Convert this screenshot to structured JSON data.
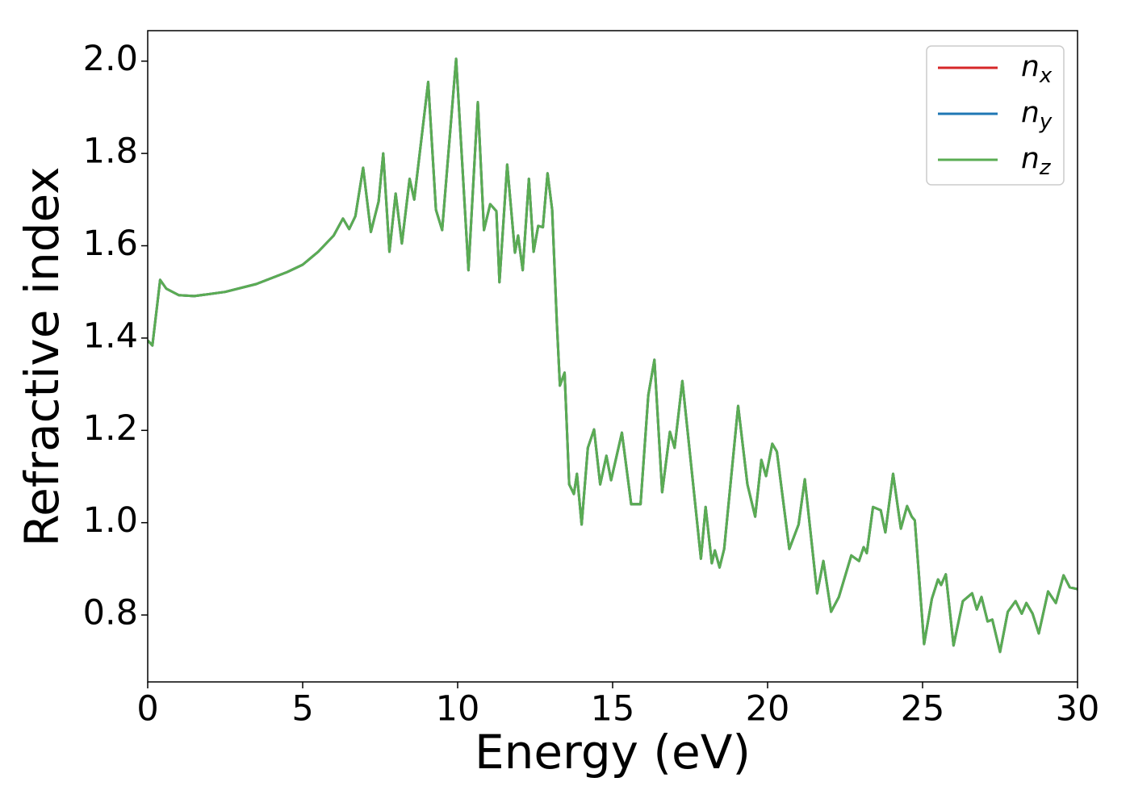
{
  "chart_data": {
    "type": "line",
    "xlabel": "Energy (eV)",
    "ylabel": "Refractive index",
    "xlim": [
      0,
      30
    ],
    "ylim": [
      0.655,
      2.066
    ],
    "xticks": [
      0,
      5,
      10,
      15,
      20,
      25,
      30
    ],
    "yticks": [
      0.8,
      {
        "value": 1.0,
        "label": "1.0"
      },
      1.2,
      1.4,
      1.6,
      1.8,
      {
        "value": 2.0,
        "label": "2.0"
      }
    ],
    "legend": "upper right",
    "x": [
      0,
      0.15,
      0.3,
      0.4,
      0.6,
      1.0,
      1.5,
      2.5,
      3.5,
      4.5,
      5.0,
      5.5,
      6.0,
      6.3,
      6.5,
      6.7,
      6.95,
      7.2,
      7.45,
      7.6,
      7.8,
      8.0,
      8.2,
      8.45,
      8.6,
      9.05,
      9.3,
      9.5,
      9.95,
      10.35,
      10.65,
      10.85,
      11.05,
      11.25,
      11.35,
      11.6,
      11.85,
      11.95,
      12.1,
      12.3,
      12.45,
      12.6,
      12.75,
      12.9,
      13.05,
      13.2,
      13.3,
      13.45,
      13.6,
      13.75,
      13.85,
      14.0,
      14.2,
      14.4,
      14.6,
      14.8,
      14.95,
      15.3,
      15.6,
      15.9,
      16.15,
      16.35,
      16.6,
      16.85,
      17.0,
      17.25,
      17.85,
      18.0,
      18.2,
      18.3,
      18.45,
      18.6,
      19.05,
      19.35,
      19.6,
      19.8,
      19.95,
      20.15,
      20.3,
      20.7,
      21.0,
      21.2,
      21.6,
      21.8,
      22.05,
      22.3,
      22.7,
      22.95,
      23.1,
      23.2,
      23.4,
      23.65,
      23.8,
      24.05,
      24.3,
      24.5,
      24.65,
      24.75,
      25.05,
      25.3,
      25.5,
      25.6,
      25.75,
      26.0,
      26.3,
      26.6,
      26.75,
      26.9,
      27.1,
      27.25,
      27.5,
      27.75,
      28.0,
      28.2,
      28.35,
      28.55,
      28.75,
      29.05,
      29.3,
      29.55,
      29.75,
      30.0
    ],
    "series": [
      {
        "name": "nx",
        "color": "#d62728",
        "values": [
          1.395,
          1.384,
          1.468,
          1.526,
          1.507,
          1.493,
          1.491,
          1.5,
          1.517,
          1.543,
          1.559,
          1.587,
          1.622,
          1.659,
          1.636,
          1.664,
          1.769,
          1.63,
          1.696,
          1.8,
          1.587,
          1.713,
          1.605,
          1.745,
          1.7,
          1.955,
          1.678,
          1.634,
          2.005,
          1.547,
          1.911,
          1.634,
          1.69,
          1.675,
          1.521,
          1.776,
          1.585,
          1.622,
          1.547,
          1.745,
          1.587,
          1.643,
          1.64,
          1.757,
          1.678,
          1.433,
          1.297,
          1.325,
          1.083,
          1.062,
          1.106,
          0.996,
          1.162,
          1.202,
          1.083,
          1.145,
          1.092,
          1.195,
          1.04,
          1.04,
          1.276,
          1.353,
          1.066,
          1.197,
          1.162,
          1.307,
          0.922,
          1.034,
          0.912,
          0.94,
          0.903,
          0.943,
          1.253,
          1.083,
          1.013,
          1.136,
          1.101,
          1.171,
          1.154,
          0.943,
          0.996,
          1.094,
          0.847,
          0.917,
          0.807,
          0.839,
          0.929,
          0.917,
          0.947,
          0.934,
          1.034,
          1.027,
          0.979,
          1.106,
          0.987,
          1.036,
          1.013,
          1.005,
          0.737,
          0.835,
          0.877,
          0.865,
          0.888,
          0.734,
          0.83,
          0.847,
          0.812,
          0.839,
          0.786,
          0.79,
          0.72,
          0.807,
          0.83,
          0.803,
          0.826,
          0.803,
          0.76,
          0.851,
          0.826,
          0.886,
          0.86,
          0.856
        ]
      },
      {
        "name": "ny",
        "color": "#1f77b4",
        "values": [
          1.395,
          1.384,
          1.468,
          1.526,
          1.507,
          1.493,
          1.491,
          1.5,
          1.517,
          1.543,
          1.559,
          1.587,
          1.622,
          1.659,
          1.636,
          1.664,
          1.769,
          1.63,
          1.696,
          1.8,
          1.587,
          1.713,
          1.605,
          1.745,
          1.7,
          1.955,
          1.678,
          1.634,
          2.005,
          1.547,
          1.911,
          1.634,
          1.69,
          1.675,
          1.521,
          1.776,
          1.585,
          1.622,
          1.547,
          1.745,
          1.587,
          1.643,
          1.64,
          1.757,
          1.678,
          1.433,
          1.297,
          1.325,
          1.083,
          1.062,
          1.106,
          0.996,
          1.162,
          1.202,
          1.083,
          1.145,
          1.092,
          1.195,
          1.04,
          1.04,
          1.276,
          1.353,
          1.066,
          1.197,
          1.162,
          1.307,
          0.922,
          1.034,
          0.912,
          0.94,
          0.903,
          0.943,
          1.253,
          1.083,
          1.013,
          1.136,
          1.101,
          1.171,
          1.154,
          0.943,
          0.996,
          1.094,
          0.847,
          0.917,
          0.807,
          0.839,
          0.929,
          0.917,
          0.947,
          0.934,
          1.034,
          1.027,
          0.979,
          1.106,
          0.987,
          1.036,
          1.013,
          1.005,
          0.737,
          0.835,
          0.877,
          0.865,
          0.888,
          0.734,
          0.83,
          0.847,
          0.812,
          0.839,
          0.786,
          0.79,
          0.72,
          0.807,
          0.83,
          0.803,
          0.826,
          0.803,
          0.76,
          0.851,
          0.826,
          0.886,
          0.86,
          0.856
        ]
      },
      {
        "name": "nz",
        "color": "#5aac53",
        "values": [
          1.395,
          1.384,
          1.468,
          1.526,
          1.507,
          1.493,
          1.491,
          1.5,
          1.517,
          1.543,
          1.559,
          1.587,
          1.622,
          1.659,
          1.636,
          1.664,
          1.769,
          1.63,
          1.696,
          1.8,
          1.587,
          1.713,
          1.605,
          1.745,
          1.7,
          1.955,
          1.678,
          1.634,
          2.005,
          1.547,
          1.911,
          1.634,
          1.69,
          1.675,
          1.521,
          1.776,
          1.585,
          1.622,
          1.547,
          1.745,
          1.587,
          1.643,
          1.64,
          1.757,
          1.678,
          1.433,
          1.297,
          1.325,
          1.083,
          1.062,
          1.106,
          0.996,
          1.162,
          1.202,
          1.083,
          1.145,
          1.092,
          1.195,
          1.04,
          1.04,
          1.276,
          1.353,
          1.066,
          1.197,
          1.162,
          1.307,
          0.922,
          1.034,
          0.912,
          0.94,
          0.903,
          0.943,
          1.253,
          1.083,
          1.013,
          1.136,
          1.101,
          1.171,
          1.154,
          0.943,
          0.996,
          1.094,
          0.847,
          0.917,
          0.807,
          0.839,
          0.929,
          0.917,
          0.947,
          0.934,
          1.034,
          1.027,
          0.979,
          1.106,
          0.987,
          1.036,
          1.013,
          1.005,
          0.737,
          0.835,
          0.877,
          0.865,
          0.888,
          0.734,
          0.83,
          0.847,
          0.812,
          0.839,
          0.786,
          0.79,
          0.72,
          0.807,
          0.83,
          0.803,
          0.826,
          0.803,
          0.76,
          0.851,
          0.826,
          0.886,
          0.86,
          0.856
        ]
      }
    ]
  }
}
